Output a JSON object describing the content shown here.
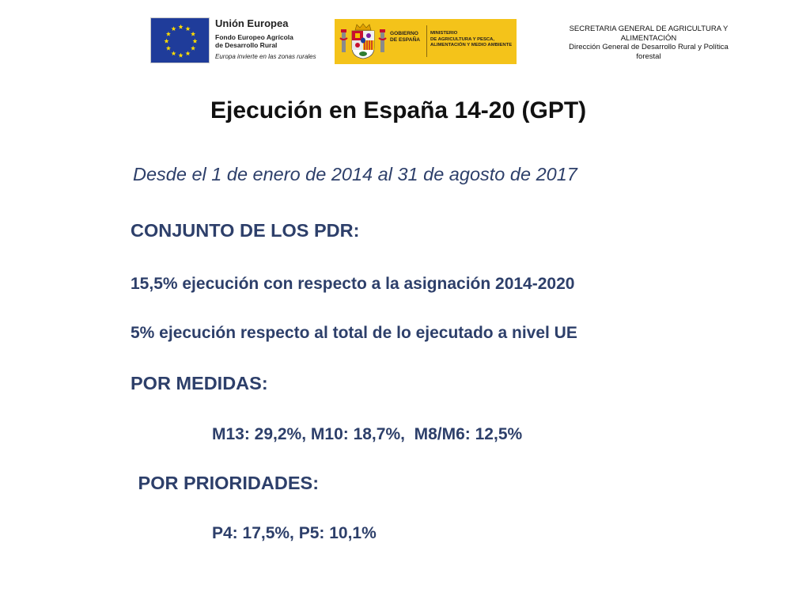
{
  "header": {
    "eu_logo": {
      "title": "Unión Europea",
      "fund_line1": "Fondo Europeo Agrícola",
      "fund_line2": "de Desarrollo Rural",
      "motto": "Europa invierte en las zonas rurales",
      "flag_color": "#1f3c9a",
      "star_color": "#ffdd00"
    },
    "spain_logo": {
      "gobierno_line1": "GOBIERNO",
      "gobierno_line2": "DE ESPAÑA",
      "ministerio_line1": "MINISTERIO",
      "ministerio_line2": "DE AGRICULTURA Y PESCA,",
      "ministerio_line3": "ALIMENTACIÓN Y MEDIO AMBIENTE",
      "background_color": "#f4c31a"
    },
    "secretaria_line1": "SECRETARIA GENERAL DE AGRICULTURA Y",
    "secretaria_line2": "ALIMENTACIÓN",
    "direccion_line1": "Dirección General de Desarrollo Rural y  Política",
    "direccion_line2": "forestal"
  },
  "content": {
    "title": "Ejecución en España 14-20 (GPT)",
    "subtitle": "Desde el 1 de enero de 2014 al 31 de agosto de 2017",
    "conjunto_heading": "CONJUNTO DE LOS PDR:",
    "conjunto_line1": "15,5% ejecución con respecto a la asignación 2014-2020",
    "conjunto_line2": "5% ejecución respecto al total de lo ejecutado a nivel UE",
    "medidas_heading": "POR MEDIDAS:",
    "medidas_values": "M13: 29,2%, M10: 18,7%,  M8/M6: 12,5%",
    "prioridades_heading": " POR PRIORIDADES:",
    "prioridades_values": "P4: 17,5%, P5: 10,1%"
  },
  "colors": {
    "body_text": "#2d3f6a",
    "title_text": "#111111"
  }
}
